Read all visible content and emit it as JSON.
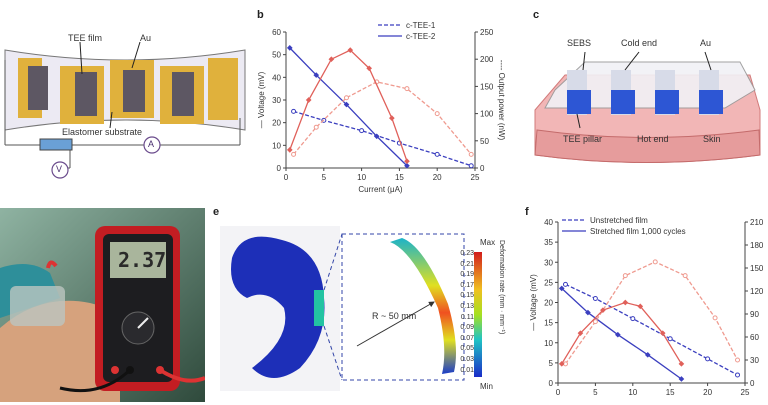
{
  "panels": {
    "a": {
      "letter": "",
      "labels": {
        "tee_film": "TEE film",
        "au": "Au",
        "substrate": "Elastomer substrate",
        "voltmeter": "V",
        "ammeter": "A"
      }
    },
    "b": {
      "letter": "b"
    },
    "c": {
      "letter": "c",
      "labels": {
        "sebs": "SEBS",
        "cold_end": "Cold end",
        "au": "Au",
        "tee_pillar": "TEE pillar",
        "hot_end": "Hot end",
        "skin": "Skin"
      }
    },
    "d": {
      "letter": "",
      "meter_reading": "2.37"
    },
    "e": {
      "letter": "e",
      "radius": "R ~ 50 mm",
      "colorbar_title": "Deformation rate (mm · mm⁻¹)",
      "colorbar_max": "Max",
      "colorbar_min": "Min",
      "colorbar_ticks": [
        "0.23",
        "0.21",
        "0.19",
        "0.17",
        "0.15",
        "0.13",
        "0.11",
        "0.09",
        "0.07",
        "0.05",
        "0.03",
        "0.01"
      ]
    },
    "f": {
      "letter": "f"
    }
  },
  "colors": {
    "blue": "#3b3fbf",
    "red": "#e0605a",
    "lightred": "#ef9a8f"
  },
  "chart_data": [
    {
      "type": "line",
      "panel": "b",
      "xlabel": "Current (μA)",
      "ylabel": "Voltage (mV)",
      "y2label": "Output power (nW)",
      "xlim": [
        0,
        25
      ],
      "ylim": [
        0,
        60
      ],
      "y2lim": [
        0,
        300
      ],
      "xticks": [
        "0",
        "5",
        "10",
        "15",
        "20",
        "25"
      ],
      "yticks": [
        "0",
        "10",
        "20",
        "30",
        "40",
        "50",
        "60"
      ],
      "y2ticks": [
        "0",
        "50",
        "100",
        "150",
        "200",
        "250"
      ],
      "legend": [
        "c-TEE-1",
        "c-TEE-2"
      ],
      "series": [
        {
          "name": "c-TEE-1",
          "axis": "y",
          "color": "#3b3fbf",
          "dashed": true,
          "x": [
            1,
            5,
            10,
            15,
            20,
            24.5
          ],
          "y": [
            25,
            21,
            16.5,
            11,
            6,
            1
          ]
        },
        {
          "name": "c-TEE-2",
          "axis": "y",
          "color": "#3b3fbf",
          "dashed": false,
          "x": [
            0.5,
            4,
            8,
            12,
            16
          ],
          "y": [
            53,
            41,
            28,
            14,
            1
          ]
        },
        {
          "name": "c-TEE-1",
          "axis": "y2",
          "color": "#ef9a8f",
          "dashed": true,
          "x": [
            1,
            4,
            8,
            12,
            16,
            20,
            24.5
          ],
          "y": [
            30,
            90,
            155,
            190,
            175,
            120,
            30
          ]
        },
        {
          "name": "c-TEE-2",
          "axis": "y2",
          "color": "#e0605a",
          "dashed": false,
          "x": [
            0.5,
            3,
            6,
            8.5,
            11,
            14,
            16
          ],
          "y": [
            40,
            150,
            240,
            260,
            220,
            110,
            15
          ]
        }
      ]
    },
    {
      "type": "line",
      "panel": "f",
      "ylabel": "Voltage (mV)",
      "xlim": [
        0,
        25
      ],
      "ylim": [
        0,
        40
      ],
      "y2lim": [
        0,
        210
      ],
      "xticks": [
        "0",
        "5",
        "10",
        "15",
        "20",
        "25"
      ],
      "yticks": [
        "0",
        "5",
        "10",
        "15",
        "20",
        "25",
        "30",
        "35",
        "40"
      ],
      "y2ticks": [
        "0",
        "30",
        "60",
        "90",
        "120",
        "150",
        "180",
        "210"
      ],
      "legend": [
        "Unstretched film",
        "Stretched film 1,000 cycles"
      ],
      "series": [
        {
          "name": "Unstretched film",
          "axis": "y",
          "color": "#3b3fbf",
          "dashed": true,
          "x": [
            1,
            5,
            10,
            15,
            20,
            24
          ],
          "y": [
            24.5,
            21,
            16,
            11,
            6,
            2
          ]
        },
        {
          "name": "Stretched film 1,000 cycles",
          "axis": "y",
          "color": "#3b3fbf",
          "dashed": false,
          "x": [
            0.5,
            4,
            8,
            12,
            16.5
          ],
          "y": [
            23.5,
            17.5,
            12,
            7,
            1
          ]
        },
        {
          "name": "Unstretched film",
          "axis": "y2",
          "color": "#ef9a8f",
          "dashed": true,
          "x": [
            1,
            5,
            9,
            13,
            17,
            21,
            24
          ],
          "y": [
            25,
            80,
            140,
            158,
            140,
            85,
            30
          ]
        },
        {
          "name": "Stretched film 1,000 cycles",
          "axis": "y2",
          "color": "#e0605a",
          "dashed": false,
          "x": [
            0.5,
            3,
            6,
            9,
            11,
            14,
            16.5
          ],
          "y": [
            25,
            65,
            95,
            105,
            100,
            65,
            25
          ]
        }
      ]
    }
  ]
}
